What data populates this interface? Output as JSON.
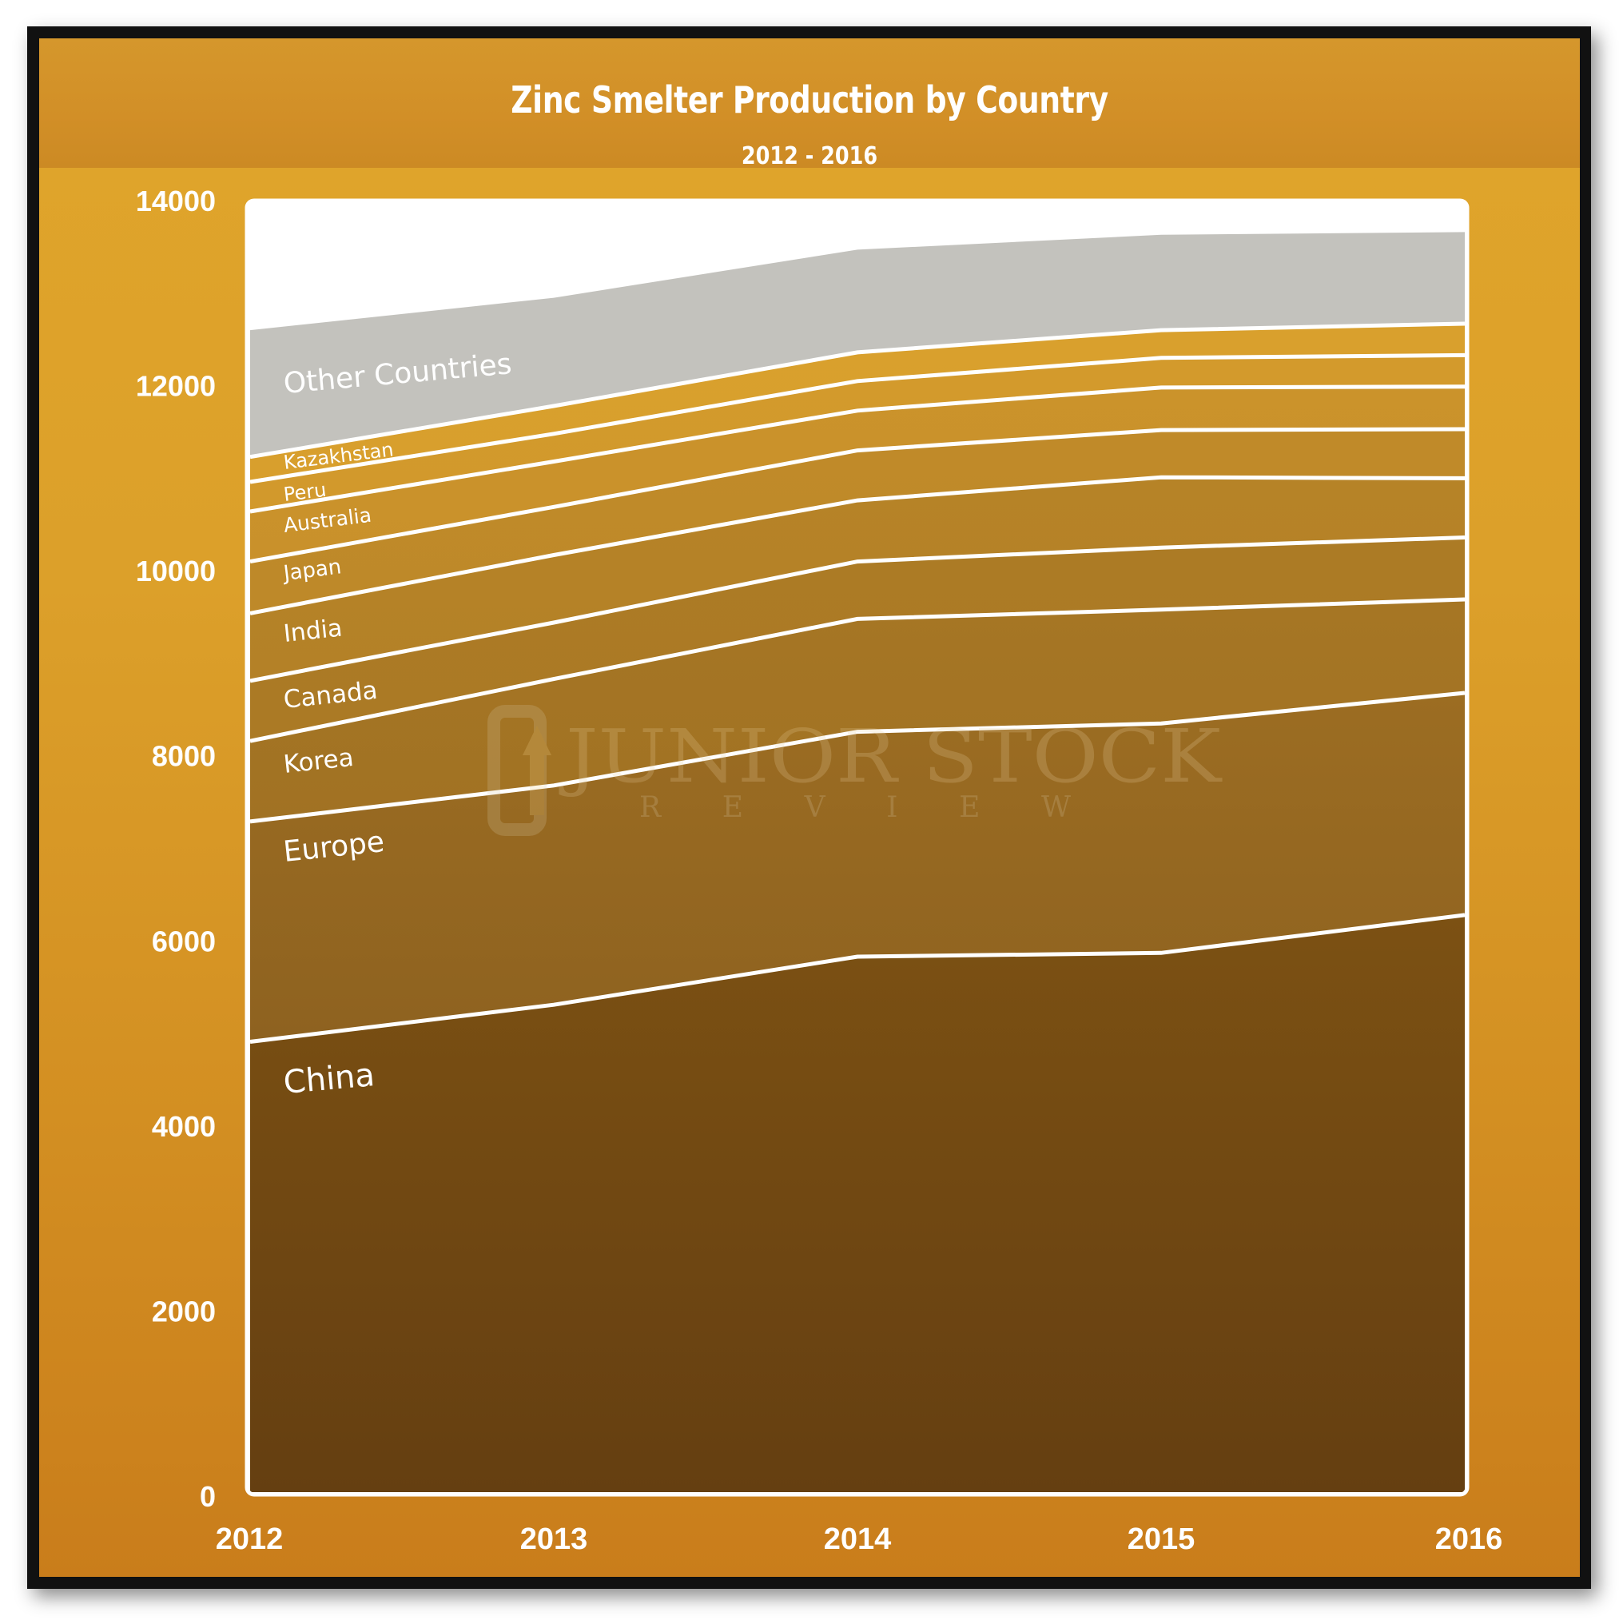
{
  "chart_data": {
    "type": "area",
    "stacked": true,
    "title": "Zinc Smelter Production by Country",
    "subtitle": "2012 - 2016",
    "xlabel": "",
    "ylabel": "",
    "x": [
      2012,
      2013,
      2014,
      2015,
      2016
    ],
    "x_tick_labels": [
      "2012",
      "2013",
      "2014",
      "2015",
      "2016"
    ],
    "ylim": [
      0,
      14000
    ],
    "y_ticks": [
      0,
      2000,
      4000,
      6000,
      8000,
      10000,
      12000,
      14000
    ],
    "y_tick_labels": [
      "0",
      "2000",
      "4000",
      "6000",
      "8000",
      "10000",
      "12000",
      "14000"
    ],
    "grid": false,
    "legend": "inline-labels",
    "series": [
      {
        "name": "China",
        "values": [
          4910,
          5310,
          5830,
          5870,
          6280
        ],
        "color_top": "#7c5113",
        "color_bottom": "#653f11"
      },
      {
        "name": "Europe",
        "values": [
          2380,
          2370,
          2430,
          2480,
          2400
        ],
        "color_top": "#9c6d22",
        "color_bottom": "#8e6220"
      },
      {
        "name": "Korea",
        "values": [
          870,
          1150,
          1220,
          1230,
          1010
        ],
        "color_top": "#a67624",
        "color_bottom": "#a17223"
      },
      {
        "name": "Canada",
        "values": [
          650,
          610,
          620,
          670,
          670
        ],
        "color_top": "#ac7b25",
        "color_bottom": "#ab7a25"
      },
      {
        "name": "India",
        "values": [
          730,
          730,
          660,
          760,
          640
        ],
        "color_top": "#b68327",
        "color_bottom": "#b48127"
      },
      {
        "name": "Japan",
        "values": [
          560,
          520,
          540,
          510,
          530
        ],
        "color_top": "#c08a29",
        "color_bottom": "#be8929"
      },
      {
        "name": "Australia",
        "values": [
          540,
          490,
          430,
          460,
          460
        ],
        "color_top": "#cb932b",
        "color_bottom": "#c9912b"
      },
      {
        "name": "Peru",
        "values": [
          320,
          300,
          320,
          320,
          340
        ],
        "color_top": "#d39a2c",
        "color_bottom": "#d2992c"
      },
      {
        "name": "Kazakhstan",
        "values": [
          270,
          300,
          310,
          300,
          340
        ],
        "color_top": "#d9a02d",
        "color_bottom": "#d89f2d"
      },
      {
        "name": "Other Countries",
        "values": [
          1370,
          1170,
          1110,
          1030,
          990
        ],
        "color_top": "#c3c2bd",
        "color_bottom": "#c3c2bd"
      }
    ]
  },
  "watermark": {
    "line1": "JUNIOR STOCK",
    "line2": "REVIEW"
  },
  "colors": {
    "plot_background": "#ffffff",
    "separator": "#ffffff",
    "frame": "#111111"
  }
}
